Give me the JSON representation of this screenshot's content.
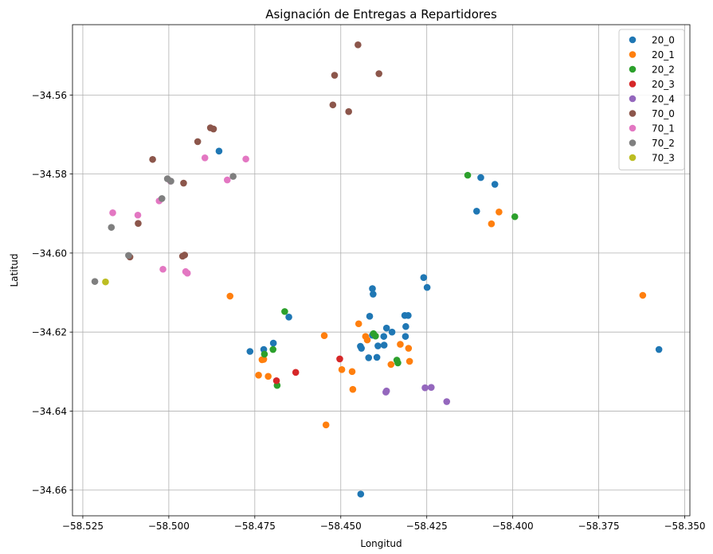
{
  "chart_data": {
    "type": "scatter",
    "title": "Asignación de Entregas a Repartidores",
    "xlabel": "Longitud",
    "ylabel": "Latitud",
    "xlim": [
      -58.528,
      -58.3485
    ],
    "ylim": [
      -34.6665,
      -34.5422
    ],
    "xticks": [
      -58.525,
      -58.5,
      -58.475,
      -58.45,
      -58.425,
      -58.4,
      -58.375,
      -58.35
    ],
    "xtick_labels": [
      "−58.525",
      "−58.500",
      "−58.475",
      "−58.450",
      "−58.425",
      "−58.400",
      "−58.375",
      "−58.350"
    ],
    "yticks": [
      -34.66,
      -34.64,
      -34.62,
      -34.6,
      -34.58,
      -34.56
    ],
    "ytick_labels": [
      "−34.66",
      "−34.64",
      "−34.62",
      "−34.60",
      "−34.58",
      "−34.56"
    ],
    "grid": true,
    "legend_position": "top-right",
    "series": [
      {
        "name": "20_0",
        "color": "#1f77b4",
        "points": [
          [
            -58.4854,
            -34.5742
          ],
          [
            -58.4093,
            -34.5809
          ],
          [
            -58.4052,
            -34.5826
          ],
          [
            -58.4105,
            -34.5894
          ],
          [
            -58.4259,
            -34.6062
          ],
          [
            -58.4249,
            -34.6087
          ],
          [
            -58.4408,
            -34.609
          ],
          [
            -58.4406,
            -34.6104
          ],
          [
            -58.4416,
            -34.616
          ],
          [
            -58.4651,
            -34.6162
          ],
          [
            -58.4314,
            -34.6158
          ],
          [
            -58.4304,
            -34.6158
          ],
          [
            -58.4311,
            -34.6186
          ],
          [
            -58.4367,
            -34.619
          ],
          [
            -58.4351,
            -34.62
          ],
          [
            -58.4375,
            -34.6211
          ],
          [
            -58.4312,
            -34.6211
          ],
          [
            -58.4408,
            -34.6208
          ],
          [
            -58.4696,
            -34.6228
          ],
          [
            -58.4724,
            -34.6244
          ],
          [
            -58.4764,
            -34.6249
          ],
          [
            -58.4443,
            -34.6236
          ],
          [
            -58.444,
            -34.6241
          ],
          [
            -58.4374,
            -34.6233
          ],
          [
            -58.4392,
            -34.6235
          ],
          [
            -58.4419,
            -34.6265
          ],
          [
            -58.4395,
            -34.6264
          ],
          [
            -58.3575,
            -34.6244
          ],
          [
            -58.4442,
            -34.661
          ]
        ]
      },
      {
        "name": "20_1",
        "color": "#ff7f0e",
        "points": [
          [
            -58.404,
            -34.5896
          ],
          [
            -58.4062,
            -34.5926
          ],
          [
            -58.4822,
            -34.6109
          ],
          [
            -58.3622,
            -34.6107
          ],
          [
            -58.4448,
            -34.6179
          ],
          [
            -58.4548,
            -34.6209
          ],
          [
            -58.4428,
            -34.6211
          ],
          [
            -58.4423,
            -34.622
          ],
          [
            -58.4327,
            -34.6231
          ],
          [
            -58.4303,
            -34.6241
          ],
          [
            -58.4724,
            -34.6269
          ],
          [
            -58.4729,
            -34.627
          ],
          [
            -58.43,
            -34.6274
          ],
          [
            -58.4354,
            -34.6282
          ],
          [
            -58.4467,
            -34.63
          ],
          [
            -58.4739,
            -34.6309
          ],
          [
            -58.4711,
            -34.6312
          ],
          [
            -58.4465,
            -34.6345
          ],
          [
            -58.4543,
            -34.6435
          ],
          [
            -58.4497,
            -34.6295
          ]
        ]
      },
      {
        "name": "20_2",
        "color": "#2ca02c",
        "points": [
          [
            -58.4131,
            -34.5803
          ],
          [
            -58.3994,
            -34.5908
          ],
          [
            -58.4663,
            -34.6148
          ],
          [
            -58.4405,
            -34.6204
          ],
          [
            -58.4399,
            -34.621
          ],
          [
            -58.4722,
            -34.6256
          ],
          [
            -58.4697,
            -34.6244
          ],
          [
            -58.4337,
            -34.6271
          ],
          [
            -58.4334,
            -34.6278
          ],
          [
            -58.4685,
            -34.6335
          ]
        ]
      },
      {
        "name": "20_3",
        "color": "#d62728",
        "points": [
          [
            -58.4503,
            -34.6268
          ],
          [
            -58.4687,
            -34.6323
          ],
          [
            -58.4631,
            -34.6302
          ]
        ]
      },
      {
        "name": "20_4",
        "color": "#9467bd",
        "points": [
          [
            -58.4367,
            -34.6349
          ],
          [
            -58.4369,
            -34.6352
          ],
          [
            -58.4255,
            -34.6341
          ],
          [
            -58.4237,
            -34.634
          ],
          [
            -58.4192,
            -34.6376
          ]
        ]
      },
      {
        "name": "70_0",
        "color": "#8c564b",
        "points": [
          [
            -58.445,
            -34.5473
          ],
          [
            -58.4518,
            -34.555
          ],
          [
            -58.4389,
            -34.5546
          ],
          [
            -58.4523,
            -34.5625
          ],
          [
            -58.4477,
            -34.5642
          ],
          [
            -58.4879,
            -34.5683
          ],
          [
            -58.487,
            -34.5686
          ],
          [
            -58.4916,
            -34.5718
          ],
          [
            -58.5047,
            -34.5763
          ],
          [
            -58.4957,
            -34.5823
          ],
          [
            -58.5089,
            -34.5925
          ],
          [
            -58.4954,
            -34.6005
          ],
          [
            -58.496,
            -34.6008
          ],
          [
            -58.5113,
            -34.601
          ]
        ]
      },
      {
        "name": "70_1",
        "color": "#e377c2",
        "points": [
          [
            -58.4895,
            -34.5759
          ],
          [
            -58.4776,
            -34.5762
          ],
          [
            -58.483,
            -34.5815
          ],
          [
            -58.4995,
            -34.5818
          ],
          [
            -58.5163,
            -34.5898
          ],
          [
            -58.509,
            -34.5904
          ],
          [
            -58.5028,
            -34.5868
          ],
          [
            -58.5017,
            -34.6041
          ],
          [
            -58.4951,
            -34.6047
          ],
          [
            -58.4946,
            -34.6051
          ]
        ]
      },
      {
        "name": "70_2",
        "color": "#7f7f7f",
        "points": [
          [
            -58.5004,
            -34.5812
          ],
          [
            -58.4994,
            -34.5818
          ],
          [
            -58.502,
            -34.5862
          ],
          [
            -58.4813,
            -34.5806
          ],
          [
            -58.5167,
            -34.5935
          ],
          [
            -58.5117,
            -34.6006
          ],
          [
            -58.5215,
            -34.6072
          ]
        ]
      },
      {
        "name": "70_3",
        "color": "#bcbd22",
        "points": [
          [
            -58.5184,
            -34.6073
          ]
        ]
      }
    ]
  }
}
